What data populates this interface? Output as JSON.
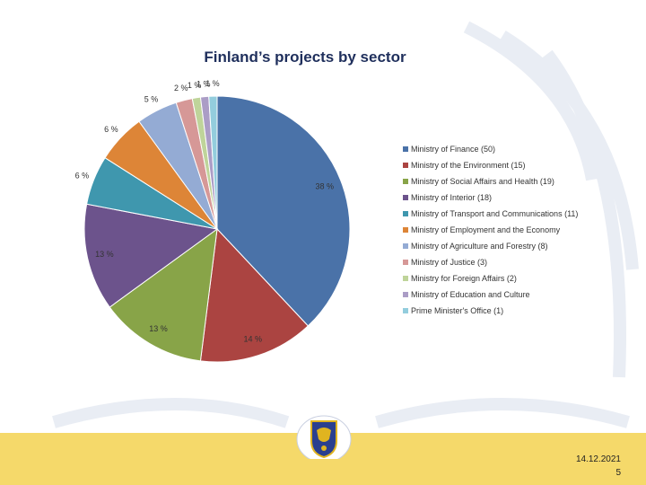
{
  "slide": {
    "title": "Finland’s projects by sector",
    "date": "14.12.2021",
    "page_number": "5"
  },
  "colors": {
    "footer_band": "#f5d96a",
    "title": "#1f2f5c"
  },
  "icons": {
    "logo": "finland-coat-of-arms-logo"
  },
  "chart_data": {
    "type": "pie",
    "title": "",
    "legend_placement": "right",
    "slices": [
      {
        "label": "Ministry of Finance (50)",
        "value": 38,
        "data_label": "38 %",
        "color": "#4a72a8"
      },
      {
        "label": "Ministry of the Environment (15)",
        "value": 14,
        "data_label": "14 %",
        "color": "#ab4441"
      },
      {
        "label": "Ministry of Social Affairs and Health (19)",
        "value": 13,
        "data_label": "13 %",
        "color": "#88a448"
      },
      {
        "label": "Ministry of Interior (18)",
        "value": 13,
        "data_label": "13 %",
        "color": "#6c538c"
      },
      {
        "label": "Ministry of Transport and Communications (11)",
        "value": 6,
        "data_label": "6 %",
        "color": "#3f97ae"
      },
      {
        "label": "Ministry of Employment and the Economy",
        "value": 6,
        "data_label": "6 %",
        "color": "#dd8537"
      },
      {
        "label": "Ministry of Agriculture and Forestry (8)",
        "value": 5,
        "data_label": "5 %",
        "color": "#94abd4"
      },
      {
        "label": "Ministry of Justice (3)",
        "value": 2,
        "data_label": "2 %",
        "color": "#d69897"
      },
      {
        "label": "Ministry for Foreign Affairs (2)",
        "value": 1,
        "data_label": "1 %",
        "color": "#bfd49a"
      },
      {
        "label": "Ministry of Education and Culture",
        "value": 1,
        "data_label": "1 %",
        "color": "#ab9dc6"
      },
      {
        "label": "Prime Minister's Office (1)",
        "value": 1,
        "data_label": "1 %",
        "color": "#93cddd"
      }
    ]
  }
}
